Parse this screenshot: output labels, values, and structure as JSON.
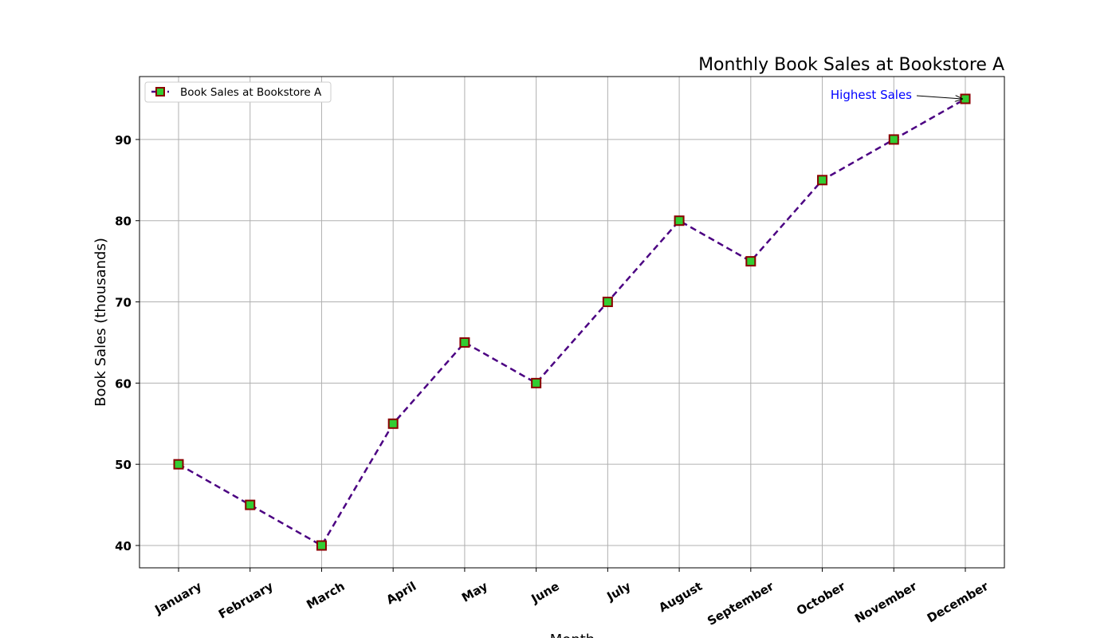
{
  "chart_data": {
    "type": "line",
    "title": "Monthly Book Sales at Bookstore A",
    "xlabel": "Month",
    "ylabel": "Book Sales (thousands)",
    "categories": [
      "January",
      "February",
      "March",
      "April",
      "May",
      "June",
      "July",
      "August",
      "September",
      "October",
      "November",
      "December"
    ],
    "series": [
      {
        "name": "Book Sales at Bookstore A",
        "values": [
          50,
          45,
          40,
          55,
          65,
          60,
          70,
          80,
          75,
          85,
          90,
          95
        ],
        "line_color": "#4b0082",
        "line_style": "dashed",
        "marker": "square",
        "marker_face_color": "#32cd32",
        "marker_edge_color": "#8b0000"
      }
    ],
    "ylim": [
      37.25,
      97.75
    ],
    "yticks": [
      40,
      50,
      60,
      70,
      80,
      90
    ],
    "grid": true,
    "legend_position": "top-left",
    "annotation": {
      "text": "Highest Sales",
      "category": "December",
      "value": 95,
      "color": "#0000ff"
    }
  }
}
